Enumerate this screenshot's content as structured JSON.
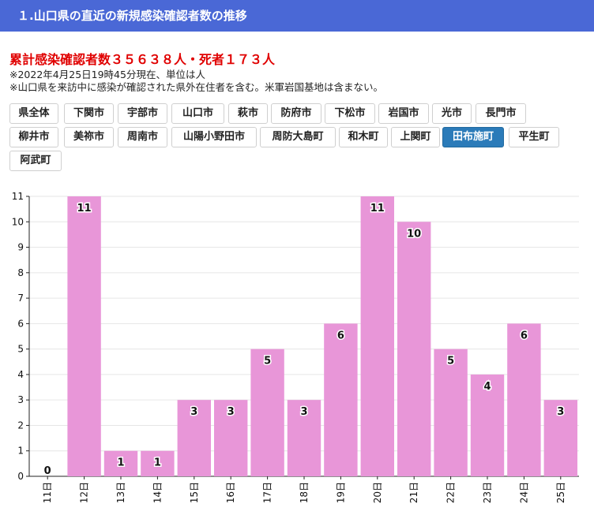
{
  "header": {
    "title": "１.山口県の直近の新規感染確認者数の推移"
  },
  "summary": {
    "headline": "累計感染確認者数３５６３８人・死者１７３人",
    "note1": "※2022年4月25日19時45分現在、単位は人",
    "note2": "※山口県を来訪中に感染が確認された県外在住者を含む。米軍岩国基地は含まない。"
  },
  "region_buttons": [
    {
      "label": "県全体",
      "active": false
    },
    {
      "label": "下関市",
      "active": false
    },
    {
      "label": "宇部市",
      "active": false
    },
    {
      "label": "山口市",
      "active": false
    },
    {
      "label": "萩市",
      "active": false
    },
    {
      "label": "防府市",
      "active": false
    },
    {
      "label": "下松市",
      "active": false
    },
    {
      "label": "岩国市",
      "active": false
    },
    {
      "label": "光市",
      "active": false
    },
    {
      "label": "長門市",
      "active": false
    },
    {
      "label": "柳井市",
      "active": false
    },
    {
      "label": "美祢市",
      "active": false
    },
    {
      "label": "周南市",
      "active": false
    },
    {
      "label": "山陽小野田市",
      "active": false
    },
    {
      "label": "周防大島町",
      "active": false
    },
    {
      "label": "和木町",
      "active": false
    },
    {
      "label": "上関町",
      "active": false
    },
    {
      "label": "田布施町",
      "active": true
    },
    {
      "label": "平生町",
      "active": false
    },
    {
      "label": "阿武町",
      "active": false
    }
  ],
  "colors": {
    "bar": "#e896d8",
    "active_button": "#2b7bb9",
    "header": "#4a68d6",
    "summary": "#e00000"
  },
  "chart_data": {
    "type": "bar",
    "categories": [
      "11日",
      "12日",
      "13日",
      "14日",
      "15日",
      "16日",
      "17日",
      "18日",
      "19日",
      "20日",
      "21日",
      "22日",
      "23日",
      "24日",
      "25日"
    ],
    "values": [
      0,
      11,
      1,
      1,
      3,
      3,
      5,
      3,
      6,
      11,
      10,
      5,
      4,
      6,
      3
    ],
    "ylim": [
      0,
      11
    ],
    "yticks": [
      0,
      1,
      2,
      3,
      4,
      5,
      6,
      7,
      8,
      9,
      10,
      11
    ],
    "data_labels": true,
    "grid": true
  }
}
